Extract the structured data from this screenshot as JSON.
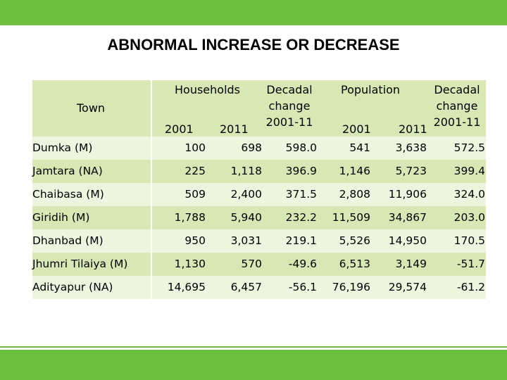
{
  "title": "ABNORMAL INCREASE OR DECREASE",
  "colors": {
    "band": "#6cbf3f",
    "header": "#d8e8b5",
    "row_even": "#d8e8b5",
    "row_odd": "#edf5de"
  },
  "headers": {
    "town": "Town",
    "households": "Households",
    "population": "Population",
    "decadal_line1": "Decadal",
    "decadal_line2": "change",
    "decadal_line3": "2001-11",
    "y2001": "2001",
    "y2011": "2011"
  },
  "rows": [
    {
      "town": "Dumka (M)",
      "hh2001": "100",
      "hh2011": "698",
      "hh_change": "598.0",
      "pop2001": "541",
      "pop2011": "3,638",
      "pop_change": "572.5"
    },
    {
      "town": "Jamtara (NA)",
      "hh2001": "225",
      "hh2011": "1,118",
      "hh_change": "396.9",
      "pop2001": "1,146",
      "pop2011": "5,723",
      "pop_change": "399.4"
    },
    {
      "town": "Chaibasa (M)",
      "hh2001": "509",
      "hh2011": "2,400",
      "hh_change": "371.5",
      "pop2001": "2,808",
      "pop2011": "11,906",
      "pop_change": "324.0"
    },
    {
      "town": "Giridih (M)",
      "hh2001": "1,788",
      "hh2011": "5,940",
      "hh_change": "232.2",
      "pop2001": "11,509",
      "pop2011": "34,867",
      "pop_change": "203.0"
    },
    {
      "town": "Dhanbad (M)",
      "hh2001": "950",
      "hh2011": "3,031",
      "hh_change": "219.1",
      "pop2001": "5,526",
      "pop2011": "14,950",
      "pop_change": "170.5"
    },
    {
      "town": "Jhumri Tilaiya (M)",
      "hh2001": "1,130",
      "hh2011": "570",
      "hh_change": "-49.6",
      "pop2001": "6,513",
      "pop2011": "3,149",
      "pop_change": "-51.7"
    },
    {
      "town": "Adityapur (NA)",
      "hh2001": "14,695",
      "hh2011": "6,457",
      "hh_change": "-56.1",
      "pop2001": "76,196",
      "pop2011": "29,574",
      "pop_change": "-61.2"
    }
  ]
}
